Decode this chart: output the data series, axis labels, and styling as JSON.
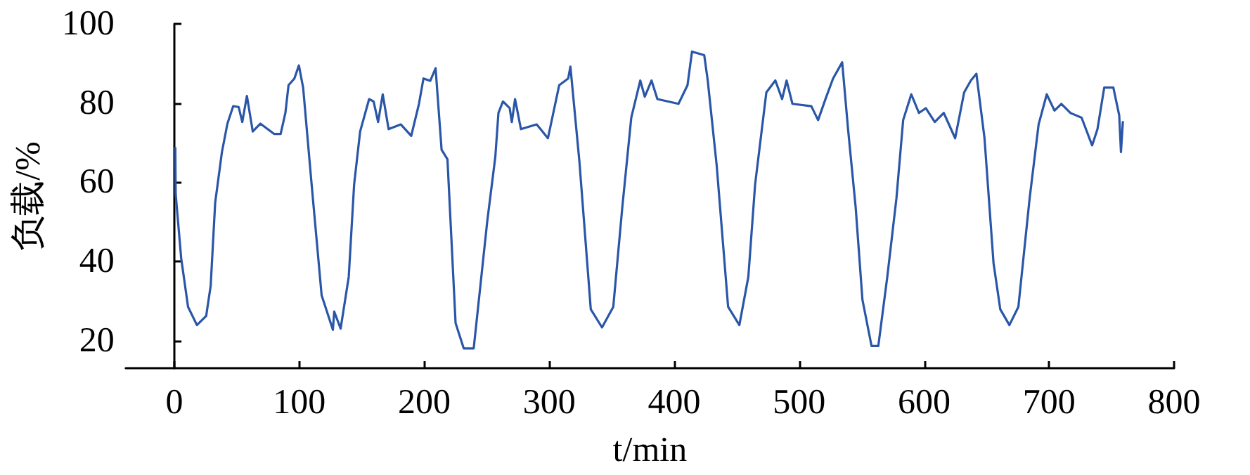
{
  "chart_data": {
    "type": "line",
    "xlabel": "t/min",
    "ylabel": "负载/%",
    "xlim": [
      -39,
      800
    ],
    "xticks": [
      0,
      100,
      200,
      300,
      400,
      500,
      600,
      700,
      800
    ],
    "ylim": [
      13,
      100
    ],
    "yticks": [
      20,
      40,
      60,
      80,
      100
    ],
    "marker": "none",
    "line_style": "solid",
    "series": [
      {
        "color": "#2a56a8",
        "x": [
          0.7,
          1,
          5.4,
          10.9,
          18,
          25.4,
          29,
          32.6,
          38,
          42.4,
          47,
          51.4,
          54.3,
          58,
          62.7,
          68.8,
          79.7,
          85,
          88.8,
          91.3,
          96,
          99.6,
          103,
          109.8,
          117.8,
          126.8,
          127.9,
          133,
          139.5,
          143.8,
          148.6,
          155.8,
          159.4,
          163,
          166.7,
          171.4,
          181.2,
          189.5,
          195.7,
          199.3,
          204.7,
          209,
          213.8,
          218.5,
          225,
          231.5,
          239.5,
          250.3,
          256.8,
          259.3,
          262.9,
          268.3,
          270,
          272.6,
          277.3,
          289.9,
          298.9,
          307.9,
          315.1,
          316.9,
          324.1,
          333.2,
          342.2,
          351.2,
          358.4,
          365.6,
          372.8,
          376.4,
          381.8,
          386.5,
          403.4,
          410.6,
          414.2,
          424,
          426.8,
          434,
          443.1,
          452.1,
          459.3,
          464.7,
          473.7,
          480.9,
          486.3,
          489.9,
          494.6,
          509.7,
          515.1,
          521.7,
          527.1,
          534.4,
          539.1,
          545.2,
          550.6,
          557.9,
          563.3,
          570.5,
          577.8,
          583.2,
          589.7,
          595.8,
          601.3,
          608.5,
          615.7,
          624.8,
          632,
          637.4,
          641.8,
          648.3,
          655.5,
          660.9,
          668.2,
          675.4,
          684.4,
          691.6,
          698.1,
          704.3,
          709.8,
          717,
          726,
          734.4,
          738.7,
          744.1,
          751.4,
          756.1,
          757.5,
          759
        ],
        "values": [
          68.7,
          57,
          40.8,
          28.5,
          23.9,
          26.2,
          33.8,
          54.8,
          67.6,
          74.8,
          79.2,
          79,
          75.2,
          81.8,
          72.8,
          74.8,
          72.2,
          72.2,
          77.5,
          84.5,
          86.2,
          89.5,
          83.9,
          59.4,
          31.4,
          22.7,
          27.3,
          23,
          36.1,
          59.4,
          72.8,
          81,
          80.4,
          75.2,
          82.2,
          73.4,
          74.6,
          71.7,
          79.8,
          86.2,
          85.6,
          88.8,
          68.2,
          65.8,
          24.4,
          18,
          18,
          50,
          66.4,
          77.5,
          80.4,
          78.7,
          75.2,
          81,
          73.4,
          74.6,
          71.1,
          84.5,
          86.2,
          89.2,
          65.2,
          27.9,
          23.3,
          28.5,
          53.6,
          76.3,
          85.7,
          81.6,
          85.7,
          81,
          79.8,
          84.5,
          93,
          92.1,
          85.7,
          64.1,
          28.5,
          23.9,
          36.1,
          59.4,
          82.7,
          85.7,
          81,
          85.7,
          79.8,
          79.2,
          75.7,
          81.6,
          86.2,
          90.3,
          73.4,
          53.6,
          30.3,
          18.6,
          18.6,
          36.1,
          55.9,
          75.7,
          82.2,
          77.5,
          78.7,
          75.2,
          77.5,
          71.1,
          82.7,
          85.7,
          87.4,
          71.1,
          39.6,
          27.9,
          23.9,
          28.5,
          55.9,
          74.6,
          82.2,
          78.1,
          79.8,
          77.5,
          76.3,
          69.3,
          73.4,
          83.9,
          83.9,
          76.9,
          67.6,
          75.2
        ]
      }
    ]
  }
}
